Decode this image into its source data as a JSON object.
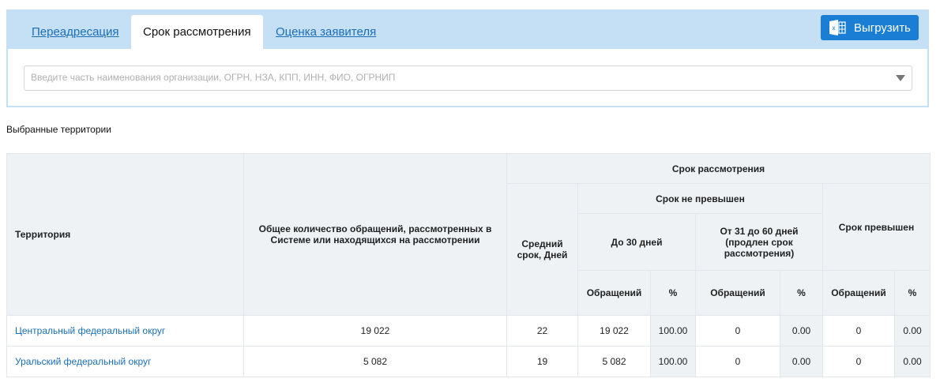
{
  "tabs": [
    {
      "label": "Переадресация"
    },
    {
      "label": "Срок рассмотрения",
      "active": true
    },
    {
      "label": "Оценка заявителя"
    }
  ],
  "export_label": "Выгрузить",
  "search": {
    "placeholder": "Введите часть наименования организации, ОГРН, НЗА, КПП, ИНН, ФИО, ОГРНИП",
    "value": ""
  },
  "selected_label": "Выбранные территории",
  "colors": {
    "tabbar": "#c5e0f5",
    "button": "#1a7fd4",
    "link": "#1a6fb8"
  },
  "table": {
    "h_territory": "Территория",
    "h_total": "Общее количество обращений, рассмотренных в Системе или находящихся на рассмотрении",
    "h_term": "Срок рассмотрения",
    "h_avg": "Средний срок, Дней",
    "h_not_exceeded": "Срок не превышен",
    "h_upto30": "До 30 дней",
    "h_31_60": "От 31 до 60 дней (продлен срок рассмотрения)",
    "h_exceeded": "Срок превышен",
    "h_count": "Обращений",
    "h_pct": "%",
    "rows": [
      {
        "territory": "Центральный федеральный округ",
        "total": "19 022",
        "avg": "22",
        "c30": "19 022",
        "p30": "100.00",
        "c60": "0",
        "p60": "0.00",
        "cex": "0",
        "pex": "0.00"
      },
      {
        "territory": "Уральский федеральный округ",
        "total": "5 082",
        "avg": "19",
        "c30": "5 082",
        "p30": "100.00",
        "c60": "0",
        "p60": "0.00",
        "cex": "0",
        "pex": "0.00"
      }
    ]
  }
}
